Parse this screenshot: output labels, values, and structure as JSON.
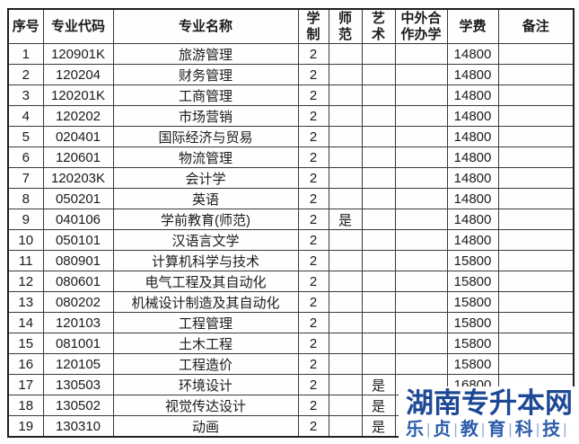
{
  "table": {
    "header": [
      "序号",
      "专业代码",
      "专业名称",
      "学制",
      "师范",
      "艺术",
      "中外合作办学",
      "学费",
      "备注"
    ],
    "rows": [
      [
        "1",
        "120901K",
        "旅游管理",
        "2",
        "",
        "",
        "",
        "14800",
        ""
      ],
      [
        "2",
        "120204",
        "财务管理",
        "2",
        "",
        "",
        "",
        "14800",
        ""
      ],
      [
        "3",
        "120201K",
        "工商管理",
        "2",
        "",
        "",
        "",
        "14800",
        ""
      ],
      [
        "4",
        "120202",
        "市场营销",
        "2",
        "",
        "",
        "",
        "14800",
        ""
      ],
      [
        "5",
        "020401",
        "国际经济与贸易",
        "2",
        "",
        "",
        "",
        "14800",
        ""
      ],
      [
        "6",
        "120601",
        "物流管理",
        "2",
        "",
        "",
        "",
        "14800",
        ""
      ],
      [
        "7",
        "120203K",
        "会计学",
        "2",
        "",
        "",
        "",
        "14800",
        ""
      ],
      [
        "8",
        "050201",
        "英语",
        "2",
        "",
        "",
        "",
        "14800",
        ""
      ],
      [
        "9",
        "040106",
        "学前教育(师范)",
        "2",
        "是",
        "",
        "",
        "14800",
        ""
      ],
      [
        "10",
        "050101",
        "汉语言文学",
        "2",
        "",
        "",
        "",
        "14800",
        ""
      ],
      [
        "11",
        "080901",
        "计算机科学与技术",
        "2",
        "",
        "",
        "",
        "15800",
        ""
      ],
      [
        "12",
        "080601",
        "电气工程及其自动化",
        "2",
        "",
        "",
        "",
        "15800",
        ""
      ],
      [
        "13",
        "080202",
        "机械设计制造及其自动化",
        "2",
        "",
        "",
        "",
        "15800",
        ""
      ],
      [
        "14",
        "120103",
        "工程管理",
        "2",
        "",
        "",
        "",
        "15800",
        ""
      ],
      [
        "15",
        "081001",
        "土木工程",
        "2",
        "",
        "",
        "",
        "15800",
        ""
      ],
      [
        "16",
        "120105",
        "工程造价",
        "2",
        "",
        "",
        "",
        "15800",
        ""
      ],
      [
        "17",
        "130503",
        "环境设计",
        "2",
        "",
        "是",
        "",
        "16800",
        ""
      ],
      [
        "18",
        "130502",
        "视觉传达设计",
        "2",
        "",
        "是",
        "",
        "",
        ""
      ],
      [
        "19",
        "130310",
        "动画",
        "2",
        "",
        "是",
        "",
        "",
        ""
      ]
    ],
    "border_color": "#3a3a3a",
    "text_color": "#1b1b1b"
  },
  "watermark": {
    "title": "湖南专升本网",
    "subtitle_chars": [
      "乐",
      "贞",
      "教",
      "育",
      "科",
      "技"
    ],
    "separator": "|",
    "title_color": "#1d4896",
    "subtitle_color": "#2e5dab",
    "separator_color": "#93acd9",
    "background": "#ffffff"
  }
}
